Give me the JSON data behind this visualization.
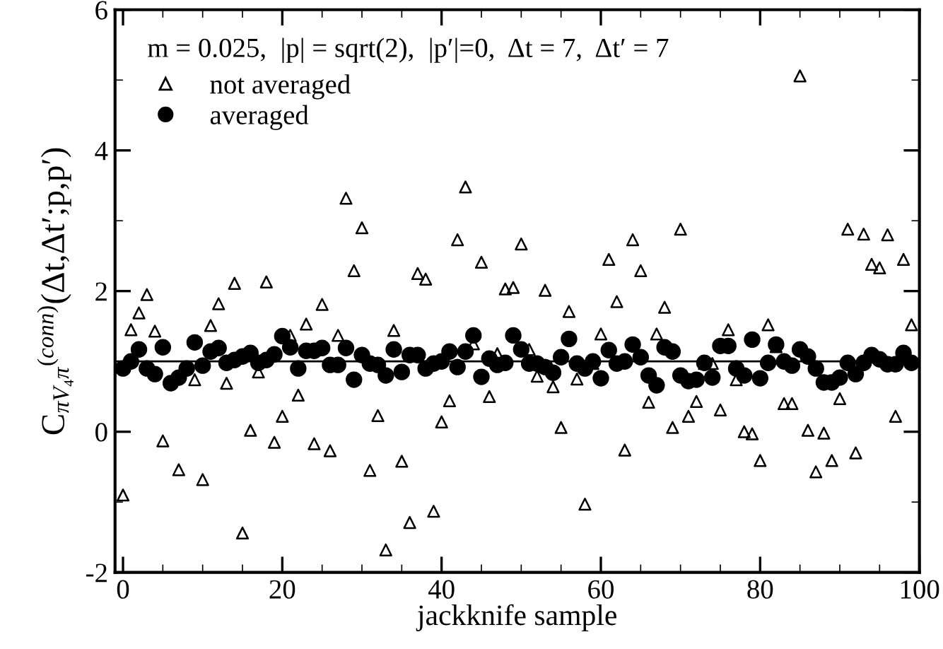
{
  "chart_data": {
    "type": "scatter",
    "xlabel": "jackknife sample",
    "ylabel": "C$_{πV₄π}$$^{(conn)}$(Δt,Δt′;p,p′)",
    "annotations": [
      "m = 0.025,  |p| = sqrt(2),  |p′|=0,  Δt = 7,  Δt′ = 7"
    ],
    "x": [
      0,
      1,
      2,
      3,
      4,
      5,
      6,
      7,
      8,
      9,
      10,
      11,
      12,
      13,
      14,
      15,
      16,
      17,
      18,
      19,
      20,
      21,
      22,
      23,
      24,
      25,
      26,
      27,
      28,
      29,
      30,
      31,
      32,
      33,
      34,
      35,
      36,
      37,
      38,
      39,
      40,
      41,
      42,
      43,
      44,
      45,
      46,
      47,
      48,
      49,
      50,
      51,
      52,
      53,
      54,
      55,
      56,
      57,
      58,
      59,
      60,
      61,
      62,
      63,
      64,
      65,
      66,
      67,
      68,
      69,
      70,
      71,
      72,
      73,
      74,
      75,
      76,
      77,
      78,
      79,
      80,
      81,
      82,
      83,
      84,
      85,
      86,
      87,
      88,
      89,
      90,
      91,
      92,
      93,
      94,
      95,
      96,
      97,
      98,
      99
    ],
    "series": [
      {
        "name": "not averaged",
        "color": "#000000",
        "marker": "triangle",
        "values": [
          -0.9,
          1.45,
          1.69,
          1.95,
          1.43,
          -0.13,
          null,
          -0.54,
          null,
          0.74,
          -0.68,
          1.51,
          1.82,
          0.69,
          2.11,
          -1.44,
          0.02,
          0.85,
          2.13,
          -0.15,
          0.22,
          1.37,
          0.52,
          1.53,
          -0.17,
          1.81,
          -0.27,
          1.37,
          3.32,
          2.29,
          2.9,
          -0.55,
          0.23,
          -1.68,
          1.44,
          -0.42,
          -1.29,
          2.25,
          2.17,
          -1.13,
          0.14,
          0.44,
          2.73,
          3.48,
          1.25,
          2.41,
          0.5,
          1.11,
          2.03,
          2.05,
          2.67,
          1.17,
          0.79,
          2.01,
          0.64,
          0.06,
          1.71,
          0.75,
          -1.03,
          0.97,
          1.39,
          2.45,
          1.85,
          -0.26,
          2.73,
          2.29,
          0.42,
          1.39,
          1.77,
          0.06,
          2.88,
          0.22,
          0.43,
          0.97,
          0.97,
          0.31,
          1.45,
          0.74,
          0.0,
          -0.03,
          -0.41,
          1.52,
          1.21,
          0.4,
          0.4,
          5.06,
          0.02,
          -0.57,
          -0.02,
          -0.41,
          0.47,
          2.88,
          -0.3,
          2.81,
          2.38,
          2.33,
          2.8,
          0.22,
          2.45,
          1.52
        ]
      },
      {
        "name": "averaged",
        "color": "#000000",
        "marker": "circle",
        "values": [
          0.9,
          1.0,
          1.17,
          0.9,
          0.82,
          1.2,
          0.69,
          0.77,
          0.9,
          1.27,
          0.94,
          1.14,
          1.19,
          0.98,
          1.02,
          1.07,
          1.12,
          0.98,
          1.02,
          1.1,
          1.36,
          1.2,
          0.9,
          1.15,
          1.15,
          1.19,
          0.95,
          0.95,
          1.19,
          0.74,
          1.09,
          0.97,
          0.95,
          0.8,
          1.17,
          0.85,
          1.09,
          1.09,
          0.9,
          0.97,
          1.0,
          1.14,
          0.92,
          1.14,
          1.37,
          0.78,
          1.04,
          0.95,
          0.98,
          1.37,
          1.17,
          0.97,
          0.97,
          0.92,
          0.84,
          1.06,
          1.32,
          0.97,
          0.9,
          1.0,
          0.76,
          1.16,
          0.97,
          1.0,
          1.24,
          1.06,
          0.8,
          0.66,
          1.2,
          1.14,
          0.8,
          0.72,
          0.74,
          0.98,
          0.77,
          1.22,
          1.22,
          0.9,
          0.8,
          1.31,
          0.76,
          0.98,
          1.24,
          1.0,
          0.94,
          1.17,
          1.07,
          0.9,
          0.7,
          0.7,
          0.77,
          0.98,
          0.82,
          0.98,
          1.09,
          1.03,
          0.96,
          0.96,
          1.12,
          0.98
        ]
      }
    ],
    "ref_lines": [
      {
        "axis": "y",
        "value": 1,
        "color": "#000000"
      }
    ],
    "xlim": [
      -1,
      100
    ],
    "xticks": [
      0,
      20,
      40,
      60,
      80,
      100
    ],
    "ylim": [
      -2,
      6
    ],
    "yticks": [
      -2,
      0,
      2,
      4,
      6
    ],
    "legend": "top left",
    "grid": false
  }
}
